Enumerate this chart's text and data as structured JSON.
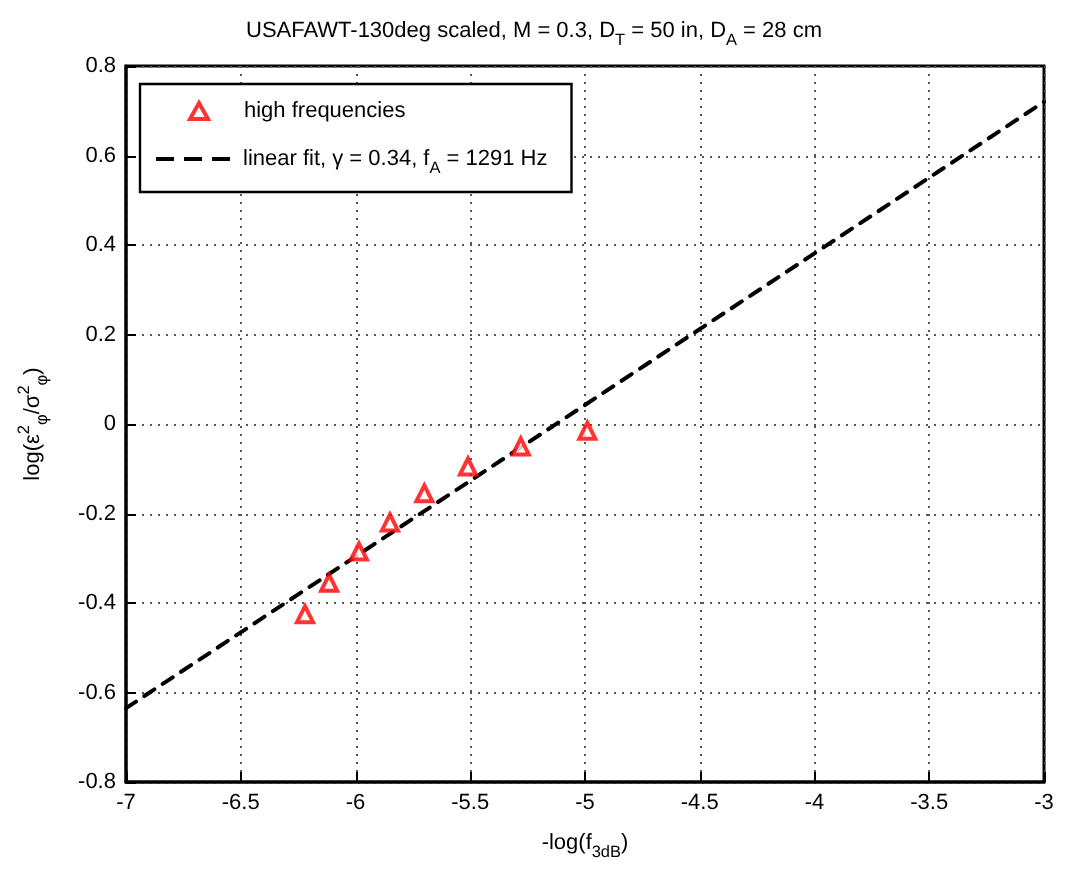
{
  "chart_data": {
    "type": "scatter",
    "title": "USAFAWT-130deg scaled, M = 0.3, D$_{T}$ = 50 in, D$_{A}$ = 28 cm",
    "xlabel": "-log(f$_{3dB}$)",
    "ylabel": "log(ε$^{2}$$_{φ}$/σ$^{2}$$_{φ}$)",
    "series": [
      {
        "name": "high frequencies",
        "marker": "triangle",
        "color": "#ff0000",
        "x": [
          -6.22,
          -6.115,
          -5.985,
          -5.85,
          -5.7,
          -5.51,
          -5.28,
          -4.99
        ],
        "values": [
          -0.425,
          -0.355,
          -0.285,
          -0.22,
          -0.155,
          -0.095,
          -0.05,
          -0.015
        ]
      },
      {
        "name": "linear fit, γ = 0.34, f$_{A}$ = 1291 Hz",
        "type": "line",
        "marker": "none",
        "line_style": "dashed",
        "color": "#000000",
        "x": [
          -7,
          -3
        ],
        "values": [
          -0.635,
          0.72
        ]
      }
    ],
    "xlim": [
      -7,
      -3
    ],
    "xticks": [
      -7,
      -6.5,
      -6,
      -5.5,
      -5,
      -4.5,
      -4,
      -3.5,
      -3
    ],
    "ylim": [
      -0.8,
      0.8
    ],
    "yticks": [
      -0.8,
      -0.6,
      -0.4,
      -0.2,
      0,
      0.2,
      0.4,
      0.6,
      0.8
    ],
    "grid": true,
    "legend": "top left"
  }
}
